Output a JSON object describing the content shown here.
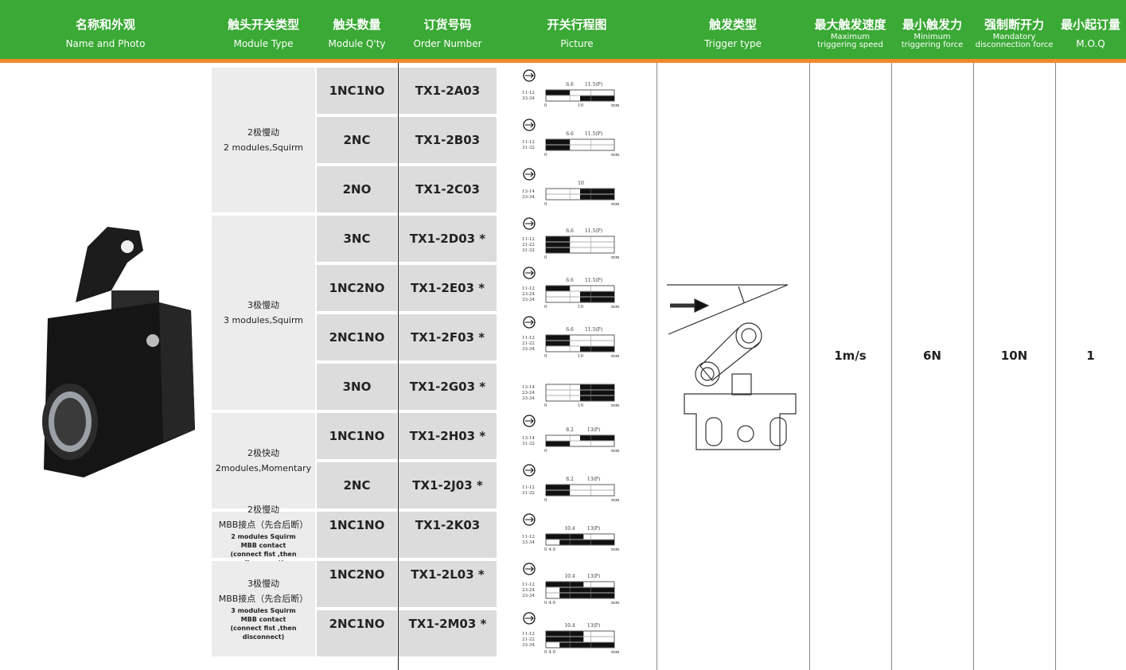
{
  "header": {
    "columns": [
      {
        "cn": "名称和外观",
        "en": [
          "Name and Photo"
        ]
      },
      {
        "cn": "触头开关类型",
        "en": [
          "Module Type"
        ]
      },
      {
        "cn": "触头数量",
        "en": [
          "Module Q'ty"
        ]
      },
      {
        "cn": "订货号码",
        "en": [
          "Order Number"
        ]
      },
      {
        "cn": "开关行程图",
        "en": [
          "Picture"
        ]
      },
      {
        "cn": "触发类型",
        "en": [
          "Trigger type"
        ]
      },
      {
        "cn": "最大触发速度",
        "en": [
          "Maximum",
          "triggering speed"
        ]
      },
      {
        "cn": "最小触发力",
        "en": [
          "Minimum",
          "triggering force"
        ]
      },
      {
        "cn": "强制断开力",
        "en": [
          "Mandatory",
          "disconnection force"
        ]
      },
      {
        "cn": "最小起订量",
        "en": [
          "M.O.Q"
        ]
      }
    ]
  },
  "groups": [
    {
      "lines": [
        "2极慢动",
        "2 modules,Squirm"
      ]
    },
    {
      "lines": [
        "3极慢动",
        "3 modules,Squirm"
      ]
    },
    {
      "lines": [
        "2极快动",
        "2modules,Momentary"
      ]
    },
    {
      "lines": [
        "2极慢动",
        "MBB接点（先合后断）",
        "2 modules Squirm",
        "MBB contact",
        "(connect fist ,then disconnect)"
      ]
    },
    {
      "lines": [
        "3极慢动",
        "MBB接点（先合后断）",
        "3 modules Squirm",
        "MBB contact",
        "(connect fist ,then disconnect)"
      ]
    }
  ],
  "rows": [
    {
      "qty": "1NC1NO",
      "order": "TX1-2A03",
      "diagram": {
        "top": [
          "6.6",
          "11.5(P)"
        ],
        "terminals": [
          "11-12",
          "33-34"
        ],
        "bottom": [
          "0",
          "10",
          "mm"
        ]
      }
    },
    {
      "qty": "2NC",
      "order": "TX1-2B03",
      "diagram": {
        "top": [
          "6.6",
          "11.5(P)"
        ],
        "terminals": [
          "11-12",
          "31-32"
        ],
        "bottom": [
          "0",
          "mm"
        ]
      }
    },
    {
      "qty": "2NO",
      "order": "TX1-2C03",
      "diagram": {
        "top": [
          "10"
        ],
        "terminals": [
          "13-14",
          "33-34"
        ],
        "bottom": [
          "0",
          "mm"
        ]
      }
    },
    {
      "qty": "3NC",
      "order": "TX1-2D03 *",
      "diagram": {
        "top": [
          "6.6",
          "11.5(P)"
        ],
        "terminals": [
          "11-12",
          "21-22",
          "31-32"
        ],
        "bottom": [
          "0",
          "mm"
        ]
      }
    },
    {
      "qty": "1NC2NO",
      "order": "TX1-2E03 *",
      "diagram": {
        "top": [
          "6.6",
          "11.5(P)"
        ],
        "terminals": [
          "11-12",
          "23-24",
          "33-34"
        ],
        "bottom": [
          "0",
          "10",
          "mm"
        ]
      }
    },
    {
      "qty": "2NC1NO",
      "order": "TX1-2F03 *",
      "diagram": {
        "top": [
          "6.6",
          "11.5(P)"
        ],
        "terminals": [
          "11-12",
          "21-22",
          "33-34"
        ],
        "bottom": [
          "0",
          "10",
          "mm"
        ]
      }
    },
    {
      "qty": "3NO",
      "order": "TX1-2G03 *",
      "diagram": {
        "top": [],
        "terminals": [
          "13-14",
          "23-24",
          "33-34"
        ],
        "bottom": [
          "0",
          "10",
          "mm"
        ]
      }
    },
    {
      "qty": "1NC1NO",
      "order": "TX1-2H03 *",
      "diagram": {
        "top": [
          "8.2",
          "13(P)"
        ],
        "terminals": [
          "13-14",
          "31-32"
        ],
        "bottom": [
          "0",
          "mm"
        ]
      }
    },
    {
      "qty": "2NC",
      "order": "TX1-2J03 *",
      "diagram": {
        "top": [
          "8.2",
          "13(P)"
        ],
        "terminals": [
          "11-12",
          "31-32"
        ],
        "bottom": [
          "0",
          "mm"
        ]
      }
    },
    {
      "qty": "1NC1NO",
      "order": "TX1-2K03",
      "diagram": {
        "top": [
          "10.4",
          "13(P)"
        ],
        "terminals": [
          "11-12",
          "33-34"
        ],
        "bottom": [
          "0  4.0",
          "mm"
        ]
      }
    },
    {
      "qty": "1NC2NO",
      "order": "TX1-2L03 *",
      "diagram": {
        "top": [
          "10.4",
          "13(P)"
        ],
        "terminals": [
          "11-12",
          "23-24",
          "33-34"
        ],
        "bottom": [
          "0  4.0",
          "mm"
        ]
      }
    },
    {
      "qty": "2NC1NO",
      "order": "TX1-2M03 *",
      "diagram": {
        "top": [
          "10.4",
          "13(P)"
        ],
        "terminals": [
          "11-12",
          "21-22",
          "33-34"
        ],
        "bottom": [
          "0  4.0",
          "mm"
        ]
      }
    }
  ],
  "specs": {
    "speed": "1m/s",
    "min_force": "6N",
    "mandatory_force": "10N",
    "moq": "1"
  }
}
